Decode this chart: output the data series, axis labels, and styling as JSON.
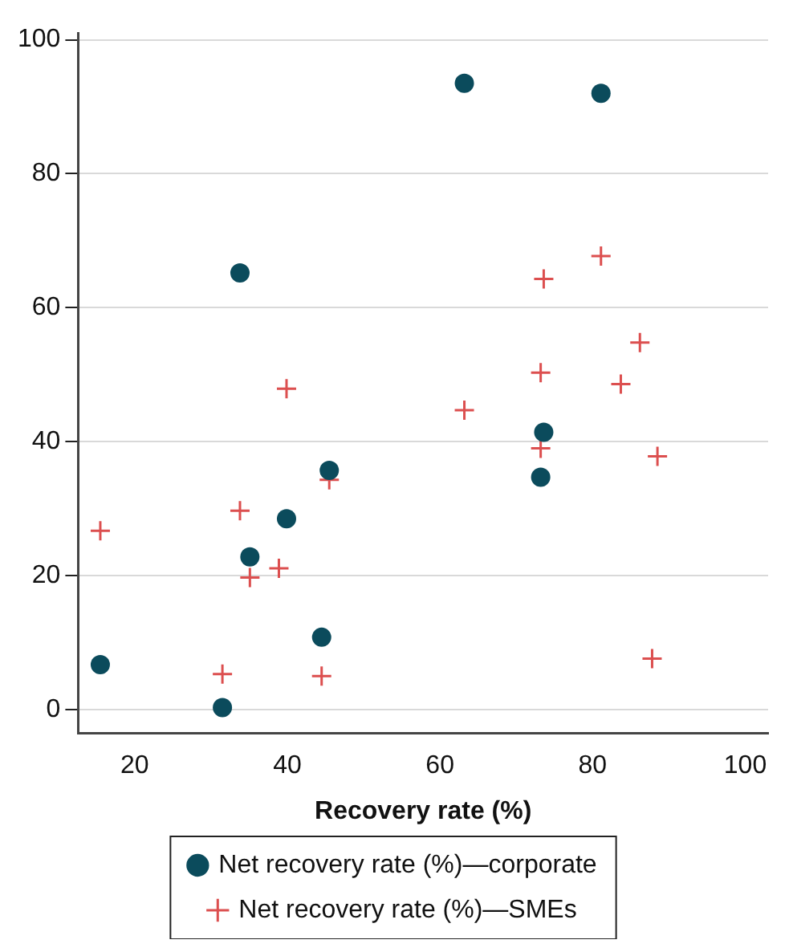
{
  "chart_data": {
    "type": "scatter",
    "xlabel": "Recovery rate (%)",
    "xlim": [
      12.6,
      103
    ],
    "xticks": [
      20,
      40,
      60,
      80,
      100
    ],
    "ylim": [
      -3.5,
      101
    ],
    "yticks": [
      0,
      20,
      40,
      60,
      80,
      100
    ],
    "grid": "y",
    "legend": "bottom",
    "series": [
      {
        "name": "Net recovery rate (%)—corporate",
        "color": "#0b4b5c",
        "marker": "circle",
        "x": [
          15.5,
          31.5,
          35.1,
          39.9,
          45.5,
          44.5,
          73.6,
          73.2,
          33.8,
          63.2,
          81.1
        ],
        "values": [
          6.7,
          0.3,
          22.8,
          28.5,
          35.7,
          10.8,
          41.4,
          34.7,
          65.2,
          93.5,
          92.0
        ]
      },
      {
        "name": "Net recovery rate (%)—SMEs",
        "color": "#dc4f4f",
        "marker": "cross",
        "x": [
          15.5,
          33.8,
          35.1,
          38.9,
          31.5,
          44.5,
          45.5,
          39.9,
          63.2,
          73.2,
          88.5,
          87.8,
          83.7,
          73.6,
          81.1,
          86.2,
          73.2
        ],
        "values": [
          26.7,
          29.7,
          19.7,
          21.1,
          5.3,
          5.0,
          34.3,
          47.9,
          44.7,
          39.0,
          37.8,
          7.6,
          48.6,
          64.3,
          67.7,
          54.8,
          50.3
        ]
      }
    ]
  }
}
